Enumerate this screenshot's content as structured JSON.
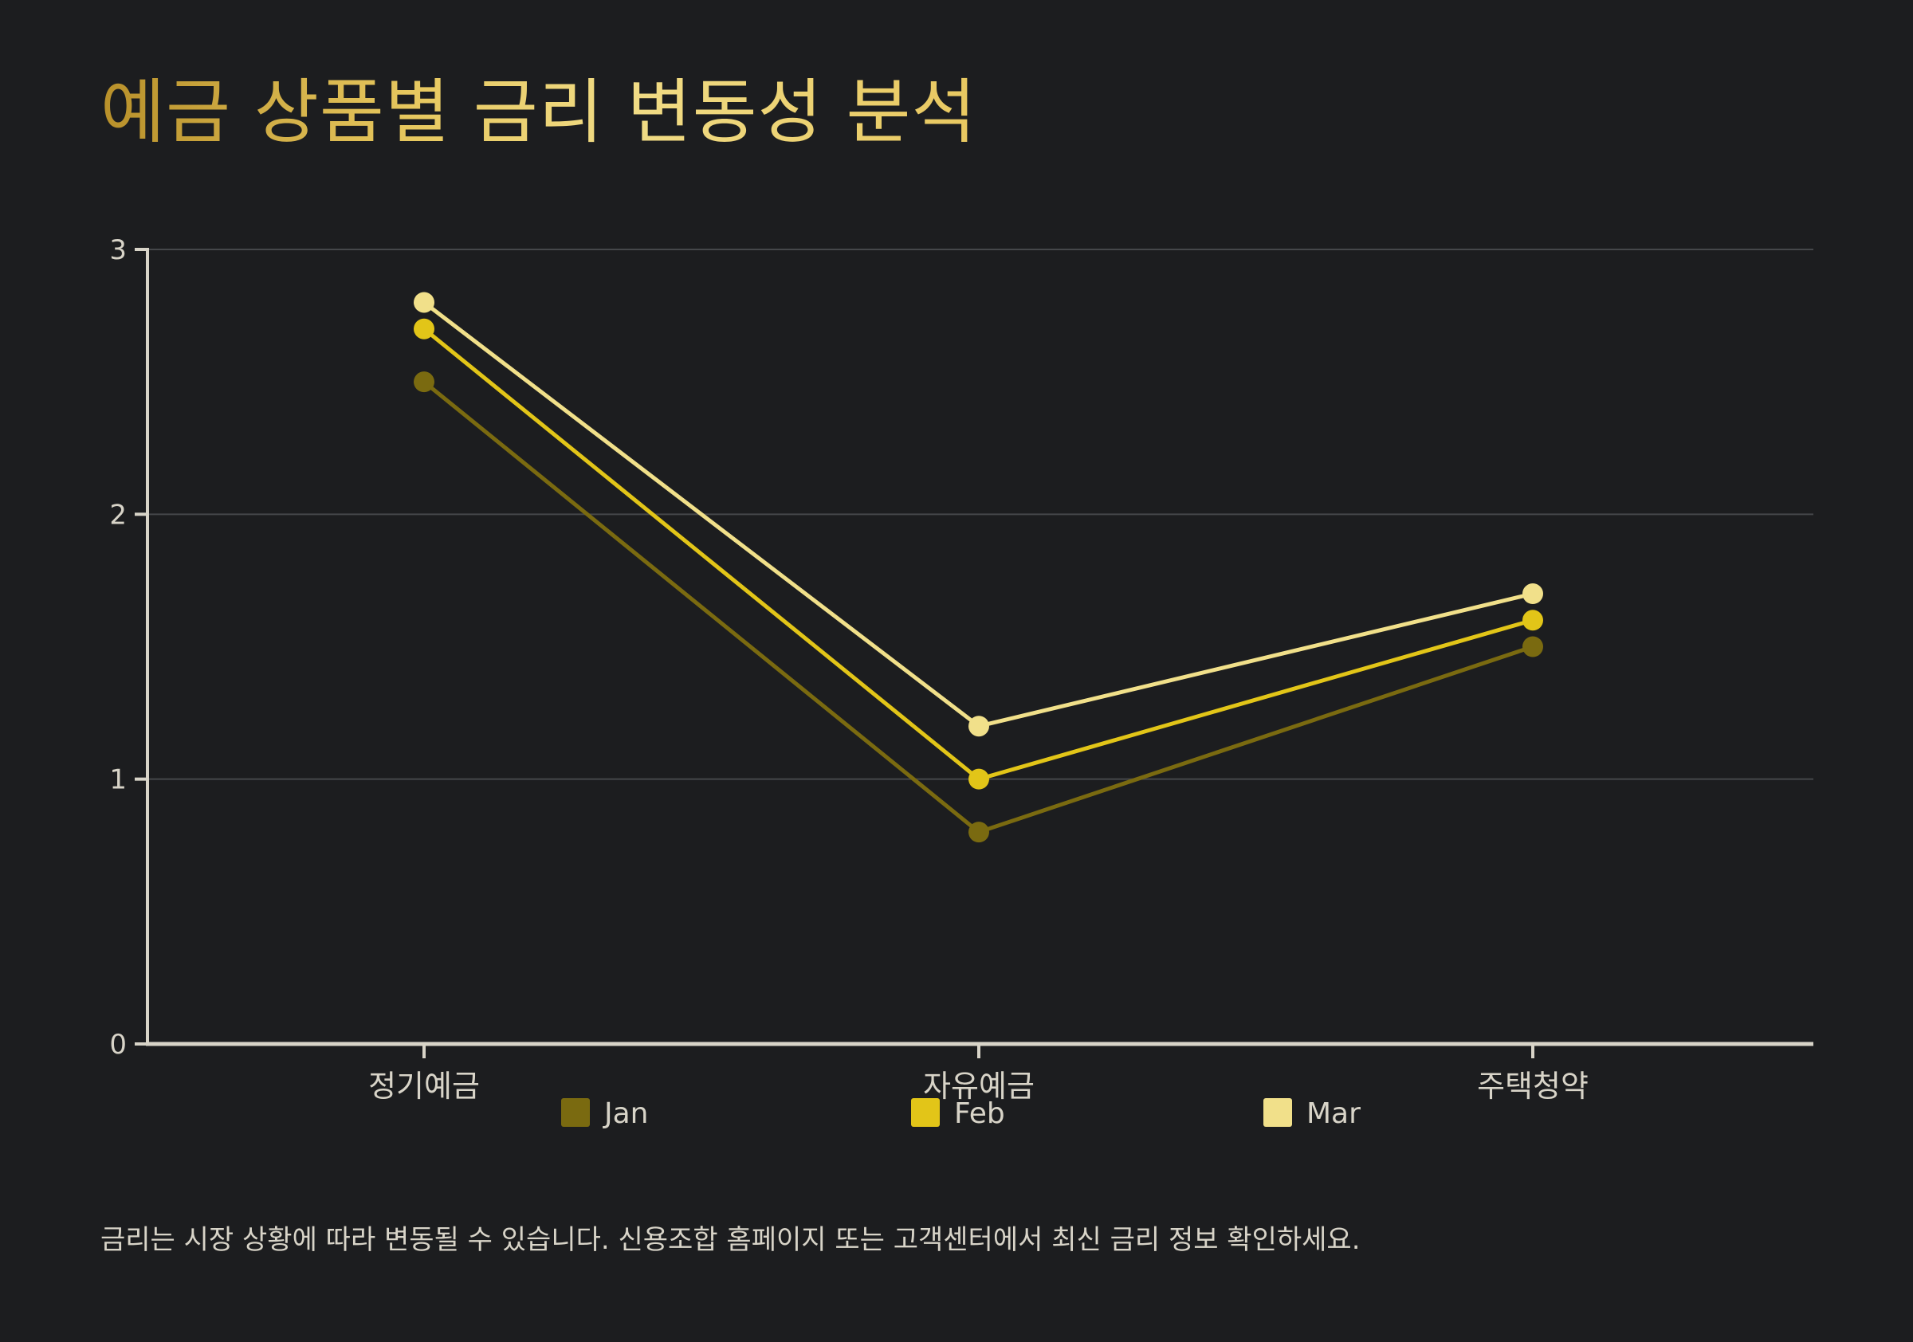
{
  "title": "예금 상품별 금리 변동성 분석",
  "footnote": "금리는 시장 상황에 따라 변동될 수 있습니다. 신용조합 홈페이지 또는 고객센터에서 최신 금리 정보 확인하세요.",
  "chart_data": {
    "type": "line",
    "title": "예금 상품별 금리 변동성 분석",
    "xlabel": "",
    "ylabel": "",
    "categories": [
      "정기예금",
      "자유예금",
      "주택청약"
    ],
    "ylim": [
      0,
      3
    ],
    "yticks": [
      0,
      1,
      2,
      3
    ],
    "grid": true,
    "legend_position": "bottom",
    "series": [
      {
        "name": "Jan",
        "values": [
          2.5,
          0.8,
          1.5
        ],
        "color": "#7a6a10"
      },
      {
        "name": "Feb",
        "values": [
          2.7,
          1.0,
          1.6
        ],
        "color": "#e2c518"
      },
      {
        "name": "Mar",
        "values": [
          2.8,
          1.2,
          1.7
        ],
        "color": "#f1e08a"
      }
    ]
  }
}
